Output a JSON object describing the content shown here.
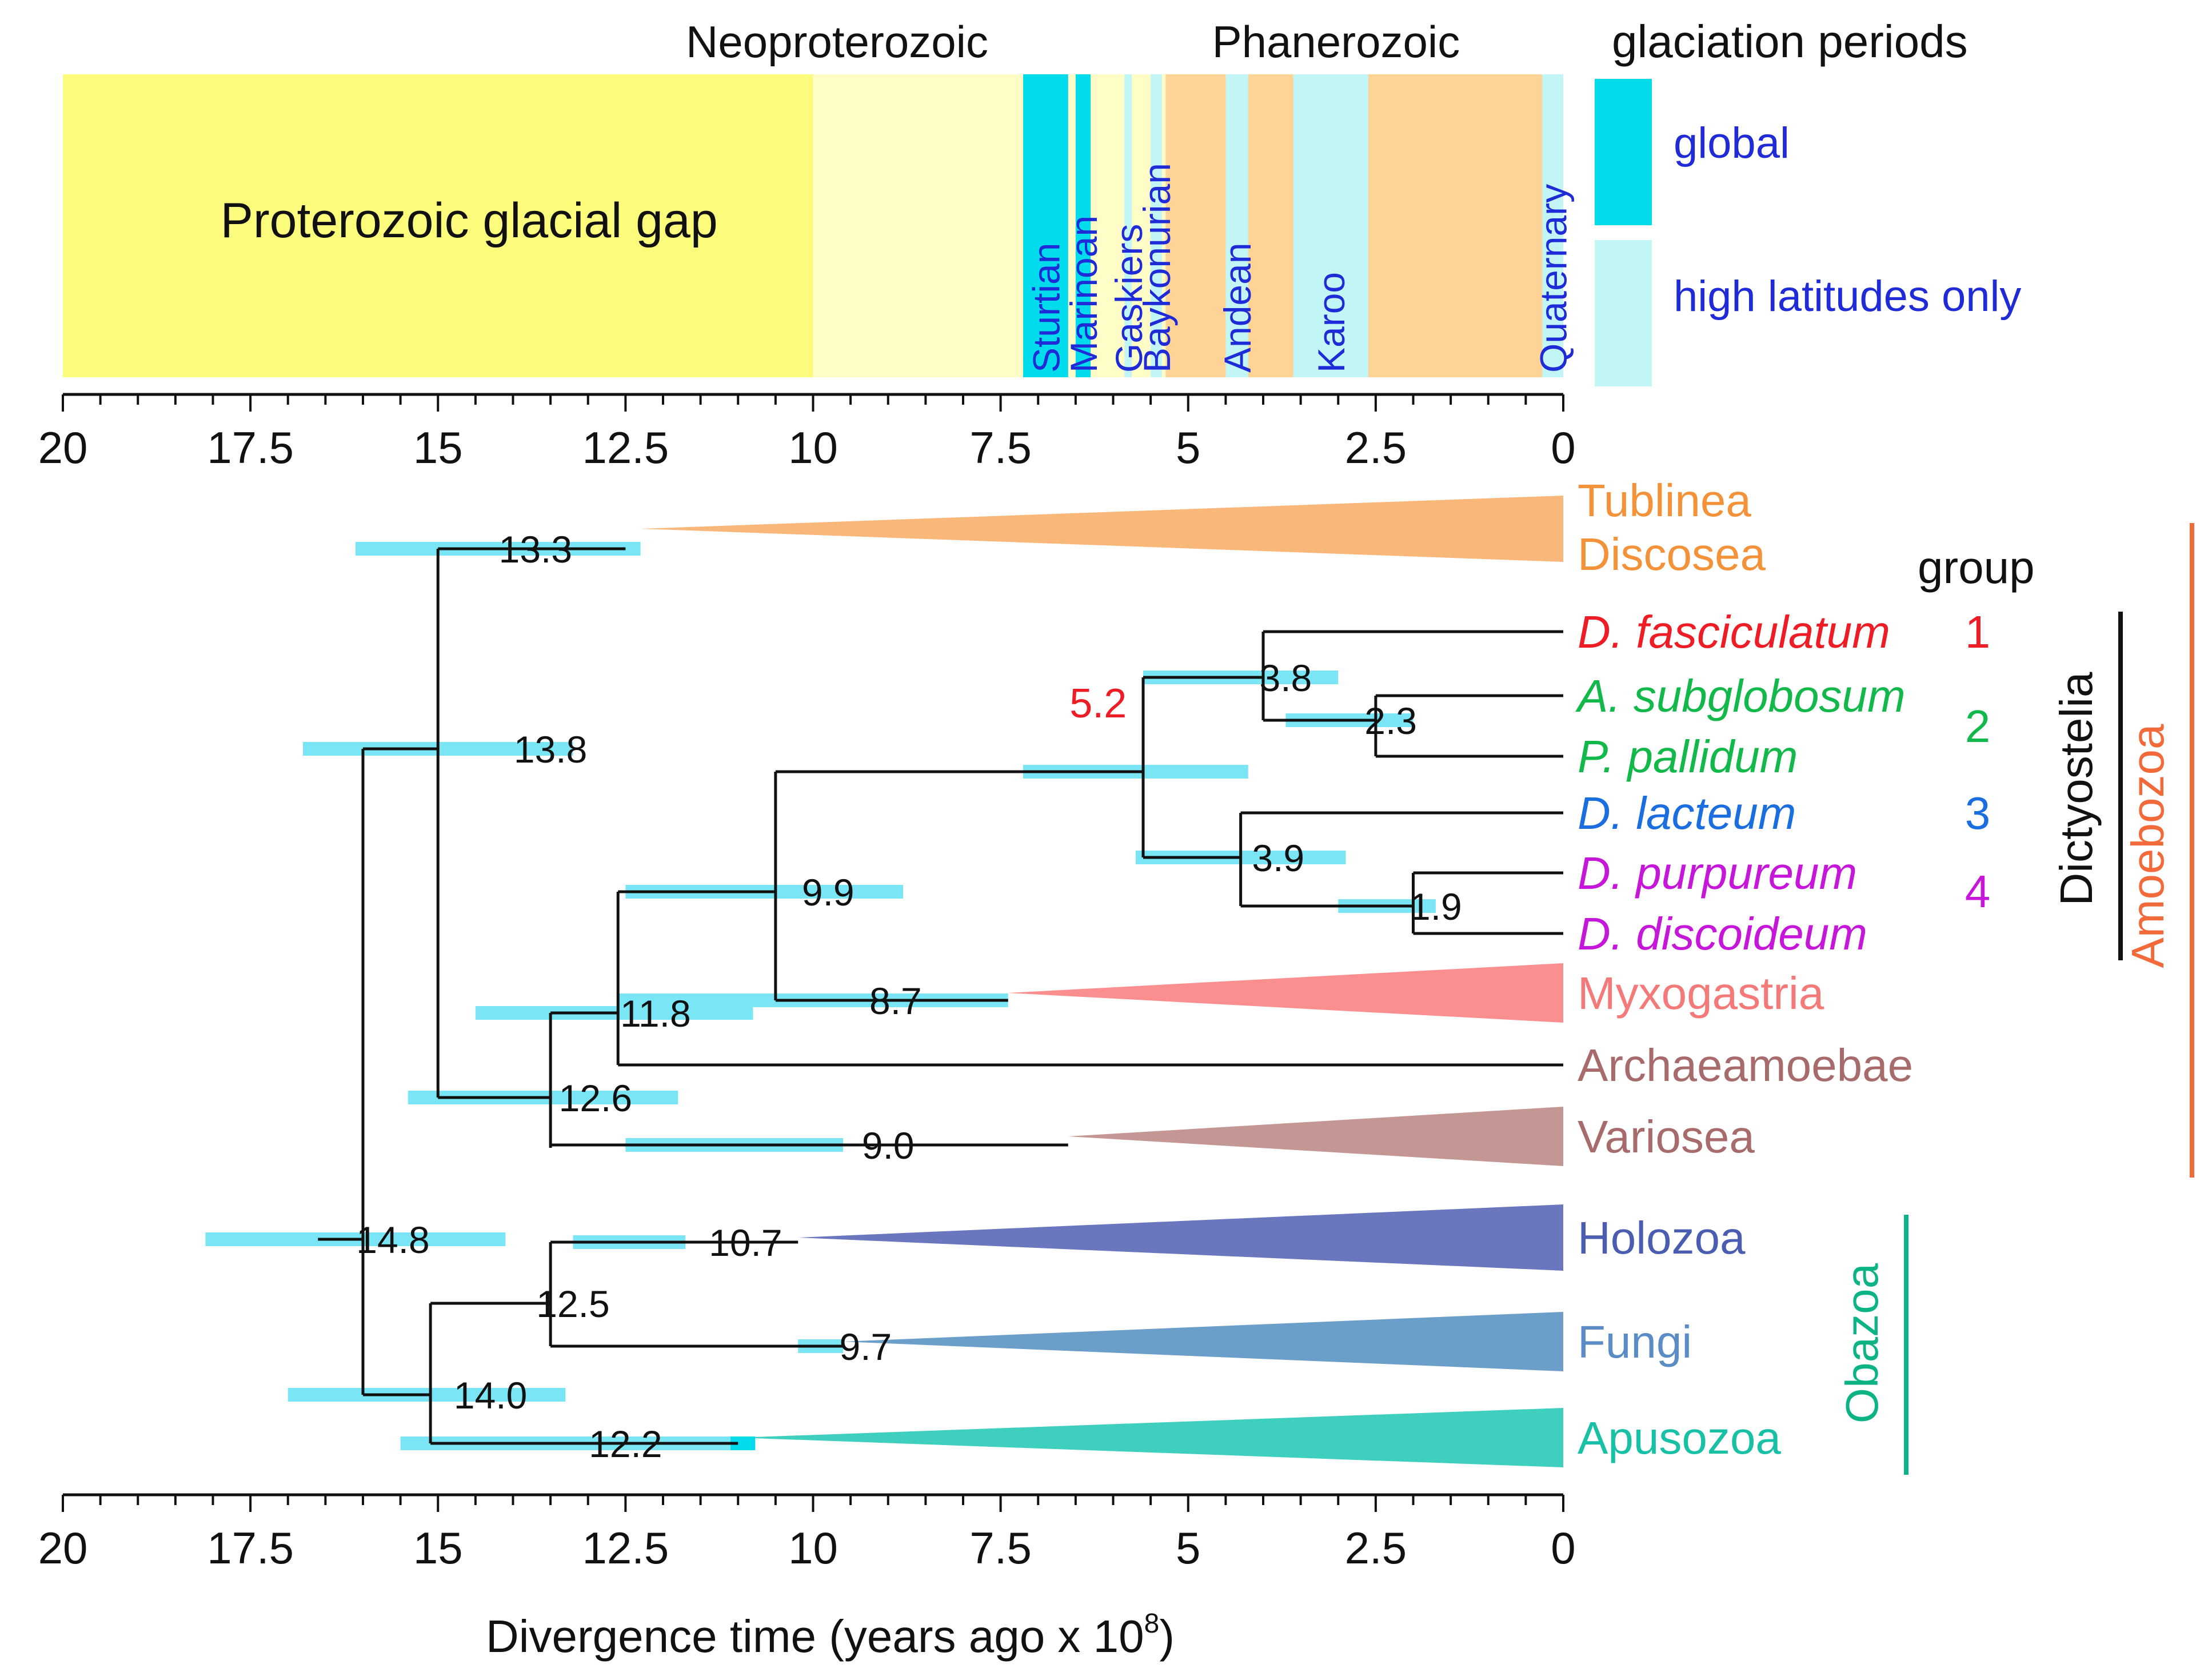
{
  "chart_data": {
    "type": "timeline-phylogeny",
    "time_axis": {
      "xlabel": "Divergence time (years ago x 10",
      "xlabel_exp": "8",
      "xlabel_close": ")",
      "xlim": [
        20,
        0
      ],
      "ticks": [
        20,
        17.5,
        15,
        12.5,
        10,
        7.5,
        5,
        2.5,
        0
      ],
      "tick_labels": [
        "20",
        "17.5",
        "15",
        "12.5",
        "10",
        "7.5",
        "5",
        "2.5",
        "0"
      ]
    },
    "eon_labels": [
      {
        "text": "Neoproterozoic",
        "at": 8.8
      },
      {
        "text": "Phanerozoic",
        "at": 2.7
      }
    ],
    "background_bands": [
      {
        "name": "Proterozoic glacial gap",
        "start": 20,
        "end": 10,
        "color": "#fbfb7c",
        "label": "Proterozoic glacial gap"
      },
      {
        "name": "neoproterozoic",
        "start": 10,
        "end": 5.3,
        "color": "#fefdc7",
        "label": ""
      },
      {
        "name": "phanerozoic",
        "start": 5.3,
        "end": 0,
        "color": "#fdd396",
        "label": ""
      }
    ],
    "glaciations": [
      {
        "name": "Sturtian",
        "start": 7.2,
        "end": 6.6,
        "type": "global"
      },
      {
        "name": "Marinoan",
        "start": 6.5,
        "end": 6.3,
        "type": "global"
      },
      {
        "name": "Gaskiers",
        "start": 5.85,
        "end": 5.75,
        "type": "high"
      },
      {
        "name": "Baykonurian",
        "start": 5.5,
        "end": 5.35,
        "type": "high"
      },
      {
        "name": "Andean",
        "start": 4.5,
        "end": 4.2,
        "type": "high"
      },
      {
        "name": "Karoo",
        "start": 3.6,
        "end": 2.6,
        "type": "high"
      },
      {
        "name": "Quaternary",
        "start": 0.28,
        "end": 0.0,
        "type": "high"
      }
    ],
    "legend": {
      "title": "glaciation periods",
      "items": [
        {
          "label": "global",
          "color": "#00dcec"
        },
        {
          "label": "high latitudes only",
          "color": "#c2f6f6"
        }
      ]
    },
    "colors": {
      "global": "#00dcec",
      "high": "#c2f6f6",
      "ci_bar": "#7ae6f5",
      "branch": "#111111"
    },
    "nodes": [
      {
        "id": "root",
        "age": 16.0,
        "label": "",
        "ci": null
      },
      {
        "id": "n138",
        "age": 15.0,
        "label": "13.8",
        "label_at": 14.3,
        "ci": [
          16.8,
          13.2
        ]
      },
      {
        "id": "n148",
        "age": 16.0,
        "label": "14.8",
        "label_at": 15.6,
        "ci": [
          18.1,
          14.1
        ],
        "ci_row": "n148"
      },
      {
        "id": "n133",
        "age": 12.5,
        "label": "13.3",
        "label_at": 13.8,
        "ci": [
          16.1,
          12.3
        ],
        "parent_x": 15.0
      },
      {
        "id": "n126",
        "age": 13.5,
        "label": "12.6",
        "label_at": 13.2,
        "ci": [
          15.4,
          11.8
        ],
        "parent_x": 15.0
      },
      {
        "id": "n118",
        "age": 12.6,
        "label": "11.8",
        "label_at": 12.3,
        "ci": [
          14.5,
          10.8
        ],
        "parent_x": 13.5
      },
      {
        "id": "n99",
        "age": 10.5,
        "label": "9.9",
        "label_at": 10.4,
        "ci": [
          12.5,
          8.8
        ],
        "parent_x": 12.6
      },
      {
        "id": "n87",
        "age": 10.5,
        "label": "8.7",
        "label_at": 9.0,
        "ci": [
          12.6,
          7.4
        ],
        "parent_x": 12.6
      },
      {
        "id": "n52",
        "age": 5.6,
        "label": "5.2",
        "label_at": 6.1,
        "ci": [
          7.2,
          4.2
        ],
        "parent_x": 10.5,
        "label_color": "#ee1c24"
      },
      {
        "id": "n38",
        "age": 4.0,
        "label": "3.8",
        "label_at": 3.8,
        "ci": [
          5.6,
          3.0
        ],
        "parent_x": 5.6
      },
      {
        "id": "n23",
        "age": 2.5,
        "label": "2.3",
        "label_at": 2.3,
        "ci": [
          3.7,
          2.0
        ],
        "parent_x": 4.0
      },
      {
        "id": "n39",
        "age": 4.3,
        "label": "3.9",
        "label_at": 3.9,
        "ci": [
          5.7,
          2.9
        ],
        "parent_x": 5.6
      },
      {
        "id": "n19",
        "age": 2.0,
        "label": "1.9",
        "label_at": 1.9,
        "ci": [
          3.0,
          1.7
        ],
        "parent_x": 4.3
      },
      {
        "id": "n90",
        "age": 6.6,
        "label": "9.0",
        "label_at": 9.0,
        "ci": [
          12.5,
          9.6
        ],
        "parent_x": 13.5
      },
      {
        "id": "n140",
        "age": 15.1,
        "label": "14.0",
        "label_at": 13.5,
        "ci": [
          17.0,
          13.3
        ],
        "parent_x": 16.0
      },
      {
        "id": "n125",
        "age": 13.5,
        "label": "12.5",
        "label_at": 12.5,
        "ci": [
          13.6,
          13.4
        ],
        "parent_x": 15.1
      },
      {
        "id": "n107",
        "age": 10.2,
        "label": "10.7",
        "label_at": 10.7,
        "ci": [
          13.2,
          11.7
        ],
        "parent_x": 13.5
      },
      {
        "id": "n97",
        "age": 9.6,
        "label": "9.7",
        "label_at": 9.7,
        "ci": [
          10.2,
          9.6
        ],
        "parent_x": 13.5
      },
      {
        "id": "n122",
        "age": 11.0,
        "label": "12.2",
        "label_at": 12.2,
        "ci": [
          15.5,
          11.0
        ],
        "parent_x": 15.1
      }
    ],
    "taxa": [
      {
        "label": "Tublinea",
        "color": "#f4923a",
        "italic": false
      },
      {
        "label": "Discosea",
        "color": "#f4923a",
        "italic": false
      },
      {
        "label": "D. fasciculatum",
        "color": "#ee1c24",
        "italic": true,
        "group": "1"
      },
      {
        "label": "A. subglobosum",
        "color": "#13b84a",
        "italic": true
      },
      {
        "label": "P. pallidum",
        "color": "#13b84a",
        "italic": true,
        "group": "2"
      },
      {
        "label": "D. lacteum",
        "color": "#1a6ee0",
        "italic": true,
        "group": "3"
      },
      {
        "label": "D. purpureum",
        "color": "#c516d9",
        "italic": true
      },
      {
        "label": "D. discoideum",
        "color": "#c516d9",
        "italic": true,
        "group": "4"
      },
      {
        "label": "Myxogastria",
        "color": "#f47a7a",
        "italic": false
      },
      {
        "label": "Archaeamoebae",
        "color": "#a86b6b",
        "italic": false
      },
      {
        "label": "Variosea",
        "color": "#a86b6b",
        "italic": false
      },
      {
        "label": "Holozoa",
        "color": "#4a5db0",
        "italic": false
      },
      {
        "label": "Fungi",
        "color": "#5b8cc5",
        "italic": false
      },
      {
        "label": "Apusozoa",
        "color": "#18c0a5",
        "italic": false
      }
    ],
    "group_header": "group",
    "group_numbers": [
      {
        "label": "1",
        "color": "#ee1c24"
      },
      {
        "label": "2",
        "color": "#13b84a"
      },
      {
        "label": "3",
        "color": "#1a6ee0"
      },
      {
        "label": "4",
        "color": "#c516d9"
      }
    ],
    "clades": [
      {
        "label": "Dictyostelia",
        "color": "#111111"
      },
      {
        "label": "Amoebozoa",
        "color": "#f26a3a"
      },
      {
        "label": "Obazoa",
        "color": "#0bb385"
      }
    ],
    "wedges": [
      {
        "name": "Tublinea/Discosea",
        "start": 12.3,
        "color": "#f9b87a"
      },
      {
        "name": "Myxogastria",
        "start": 7.4,
        "color": "#fb8f8f"
      },
      {
        "name": "Variosea",
        "start": 6.6,
        "color": "#c49694"
      },
      {
        "name": "Holozoa",
        "start": 10.2,
        "color": "#6a77be"
      },
      {
        "name": "Fungi",
        "start": 9.6,
        "color": "#6b9ec8"
      },
      {
        "name": "Apusozoa",
        "start": 11.0,
        "color": "#3fcfbf"
      }
    ]
  }
}
